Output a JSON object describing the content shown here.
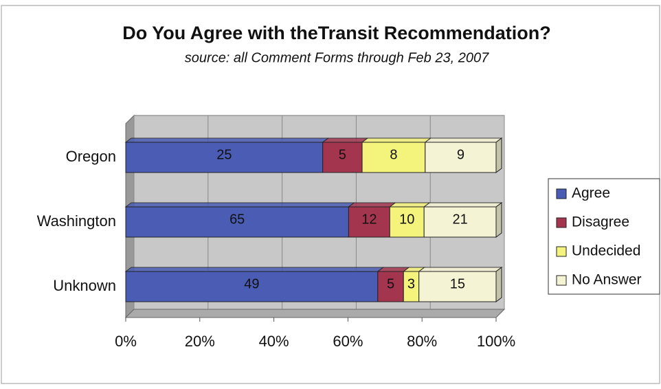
{
  "chart_data": {
    "type": "stacked-bar-horizontal",
    "stacking": "percent",
    "title": "Do You Agree with theTransit Recommendation?",
    "subtitle": "source: all Comment Forms through Feb 23, 2007",
    "categories": [
      "Oregon",
      "Washington",
      "Unknown"
    ],
    "series": [
      {
        "name": "Agree",
        "color": "#4a5cb4",
        "values": [
          25,
          65,
          49
        ]
      },
      {
        "name": "Disagree",
        "color": "#a3354f",
        "values": [
          5,
          12,
          5
        ]
      },
      {
        "name": "Undecided",
        "color": "#f4f37c",
        "values": [
          8,
          10,
          3
        ]
      },
      {
        "name": "No Answer",
        "color": "#f4f3d4",
        "values": [
          9,
          21,
          15
        ]
      }
    ],
    "xlim": [
      0,
      100
    ],
    "xticks": [
      {
        "value": 0,
        "label": "0%"
      },
      {
        "value": 20,
        "label": "20%"
      },
      {
        "value": 40,
        "label": "40%"
      },
      {
        "value": 60,
        "label": "60%"
      },
      {
        "value": 80,
        "label": "80%"
      },
      {
        "value": 100,
        "label": "100%"
      }
    ],
    "grid": true,
    "legend": "right"
  }
}
